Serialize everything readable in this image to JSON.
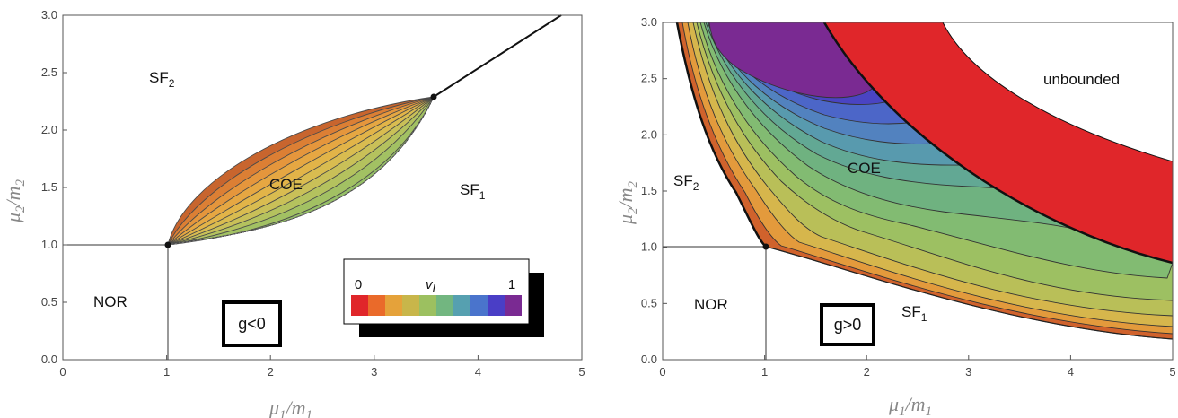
{
  "chart_data": [
    {
      "type": "phase-diagram",
      "panel": "left",
      "xlabel": "μ1/m1",
      "ylabel": "μ2/m2",
      "xlim": [
        0,
        5
      ],
      "ylim": [
        0,
        3
      ],
      "xticks": [
        "0",
        "1",
        "2",
        "3",
        "4",
        "5"
      ],
      "yticks": [
        "0.0",
        "0.5",
        "1.0",
        "1.5",
        "2.0",
        "2.5",
        "3.0"
      ],
      "regions": [
        {
          "label": "SF",
          "sub": "2",
          "x": 1.0,
          "y": 2.5
        },
        {
          "label": "SF",
          "sub": "1",
          "x": 4.0,
          "y": 1.5
        },
        {
          "label": "COE",
          "x": 2.3,
          "y": 1.55
        },
        {
          "label": "NOR",
          "x": 0.5,
          "y": 0.5
        }
      ],
      "coupling_label": "g<0",
      "critical_points": [
        [
          1.0,
          1.0
        ],
        [
          3.6,
          2.29
        ]
      ],
      "colorbar": {
        "label": "v",
        "label_sub": "L",
        "min_label": "0",
        "max_label": "1",
        "min": 0,
        "max": 1,
        "colors": [
          "#e0262a",
          "#ea6a2a",
          "#e5a23a",
          "#c8b64a",
          "#9cc060",
          "#72b680",
          "#56a0b0",
          "#4a74cc",
          "#4a3ec6",
          "#7a2a92"
        ]
      },
      "grid": false
    },
    {
      "type": "phase-diagram",
      "panel": "right",
      "xlabel": "μ1/m1",
      "ylabel": "μ2/m2",
      "xlim": [
        0,
        5
      ],
      "ylim": [
        0,
        3
      ],
      "xticks": [
        "0",
        "1",
        "2",
        "3",
        "4",
        "5"
      ],
      "yticks": [
        "0.0",
        "0.5",
        "1.0",
        "1.5",
        "2.0",
        "2.5",
        "3.0"
      ],
      "regions": [
        {
          "label": "SF",
          "sub": "2",
          "x": 0.35,
          "y": 1.5
        },
        {
          "label": "SF",
          "sub": "1",
          "x": 2.6,
          "y": 0.45
        },
        {
          "label": "COE",
          "x": 2.4,
          "y": 1.7
        },
        {
          "label": "NOR",
          "x": 0.5,
          "y": 0.5
        },
        {
          "label": "unbounded",
          "x": 4.5,
          "y": 2.5
        }
      ],
      "coupling_label": "g>0",
      "critical_points": [
        [
          1.0,
          1.0
        ]
      ],
      "grid": false
    }
  ],
  "labels": {
    "left": {
      "sf2": "SF",
      "sf2_sub": "2",
      "sf1": "SF",
      "sf1_sub": "1",
      "coe": "COE",
      "nor": "NOR",
      "g": "g<0",
      "cb_v": "v",
      "cb_sub": "L",
      "cb_min": "0",
      "cb_max": "1",
      "xlab_mu": "μ",
      "xlab_1": "1",
      "xlab_m": "/m",
      "xlab_1b": "1",
      "ylab_mu": "μ",
      "ylab_2": "2",
      "ylab_m": "/m",
      "ylab_2b": "2"
    },
    "right": {
      "sf2": "SF",
      "sf2_sub": "2",
      "sf1": "SF",
      "sf1_sub": "1",
      "coe": "COE",
      "nor": "NOR",
      "g": "g>0",
      "unb": "unbounded",
      "xlab_mu": "μ",
      "xlab_1": "1",
      "xlab_m": "/m",
      "xlab_1b": "1",
      "ylab_mu": "μ",
      "ylab_2": "2",
      "ylab_m": "/m",
      "ylab_2b": "2"
    }
  }
}
